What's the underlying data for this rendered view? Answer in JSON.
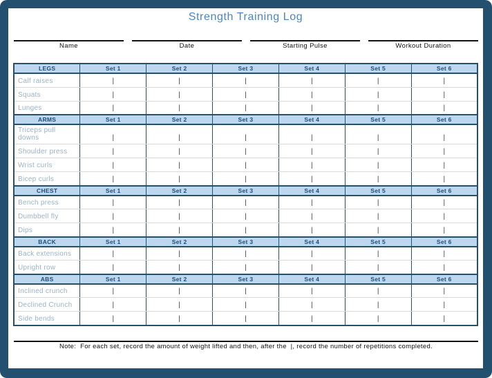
{
  "page": {
    "title": "Strength Training Log"
  },
  "fields": [
    {
      "label": "Name"
    },
    {
      "label": "Date"
    },
    {
      "label": "Starting Pulse"
    },
    {
      "label": "Workout Duration"
    }
  ],
  "table": {
    "set_labels": [
      "Set 1",
      "Set 2",
      "Set 3",
      "Set 4",
      "Set 5",
      "Set 6"
    ],
    "cell_mark": "|",
    "sections": [
      {
        "name": "LEGS",
        "exercises": [
          "Calf raises",
          "Squats",
          "Lunges"
        ]
      },
      {
        "name": "ARMS",
        "exercises": [
          "Triceps pull downs",
          "Shoulder press",
          "Wrist curls",
          "Bicep curls"
        ]
      },
      {
        "name": "CHEST",
        "exercises": [
          "Bench press",
          "Dumbbell fly",
          "Dips"
        ]
      },
      {
        "name": "BACK",
        "exercises": [
          "Back extensions",
          "Upright row"
        ]
      },
      {
        "name": "ABS",
        "exercises": [
          "Inclined crunch",
          "Declined Crunch",
          "Side bends"
        ]
      }
    ]
  },
  "note": {
    "text": "Note:  For each set, record the amount of weight lifted and then, after the  |, record the number of repetitions completed."
  },
  "colors": {
    "page_border": "#23506F",
    "title_text": "#4A86C4",
    "header_bg": "#BDD7EE",
    "header_text": "#1F4E79",
    "grid_dark": "#264F6B",
    "row_divider": "#D9D9D9",
    "exercise_text": "#9AB3C8",
    "entry_mark": "#3B3B3B"
  }
}
